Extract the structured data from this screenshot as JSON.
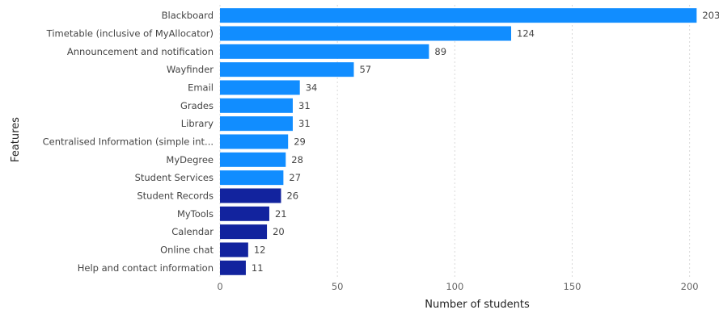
{
  "chart_data": {
    "type": "bar",
    "orientation": "horizontal",
    "title": "",
    "xlabel": "Number of students",
    "ylabel": "Features",
    "xlim": [
      0,
      205
    ],
    "xticks": [
      0,
      50,
      100,
      150,
      200
    ],
    "grid": true,
    "legend": "none",
    "categories": [
      "Blackboard",
      "Timetable (inclusive of MyAllocator)",
      "Announcement and notification",
      "Wayfinder",
      "Email",
      "Grades",
      "Library",
      "Centralised Information (simple int...",
      "MyDegree",
      "Student Services",
      "Student Records",
      "MyTools",
      "Calendar",
      "Online chat",
      "Help and contact information"
    ],
    "values": [
      203,
      124,
      89,
      57,
      34,
      31,
      31,
      29,
      28,
      27,
      26,
      21,
      20,
      12,
      11
    ],
    "bar_colors": [
      "#118DFF",
      "#118DFF",
      "#118DFF",
      "#118DFF",
      "#118DFF",
      "#118DFF",
      "#118DFF",
      "#118DFF",
      "#118DFF",
      "#118DFF",
      "#12239E",
      "#12239E",
      "#12239E",
      "#12239E",
      "#12239E"
    ]
  }
}
